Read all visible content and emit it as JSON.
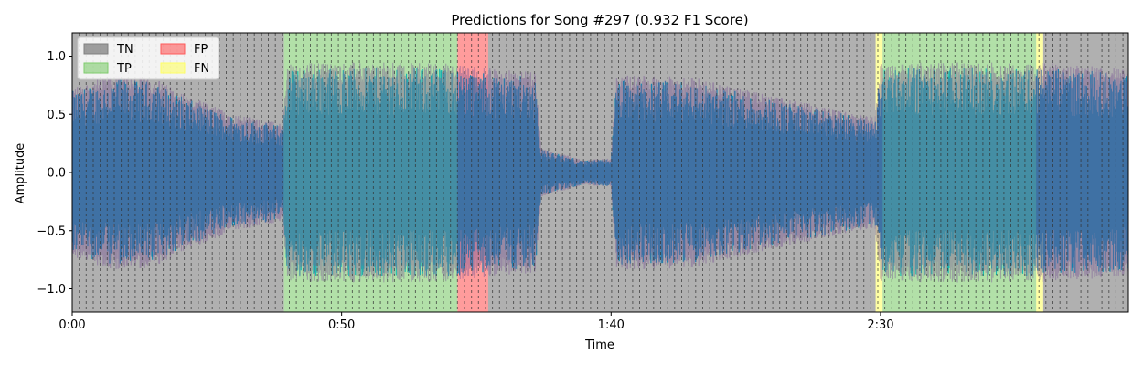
{
  "chart_data": {
    "type": "area",
    "title": "Predictions for Song #297 (0.932 F1 Score)",
    "xlabel": "Time",
    "ylabel": "Amplitude",
    "xlim": [
      0,
      196
    ],
    "ylim": [
      -1.2,
      1.2
    ],
    "x_ticks": [
      {
        "value": 0,
        "label": "0:00"
      },
      {
        "value": 50,
        "label": "0:50"
      },
      {
        "value": 100,
        "label": "1:40"
      },
      {
        "value": 150,
        "label": "2:30"
      }
    ],
    "y_ticks": [
      {
        "value": -1.0,
        "label": "−1.0"
      },
      {
        "value": -0.5,
        "label": "−0.5"
      },
      {
        "value": 0.0,
        "label": "0.0"
      },
      {
        "value": 0.5,
        "label": "0.5"
      },
      {
        "value": 1.0,
        "label": "1.0"
      }
    ],
    "legend": {
      "placement": "top-left",
      "entries": [
        {
          "label": "TN",
          "color": "#808080"
        },
        {
          "label": "TP",
          "color": "#7fcc6e"
        },
        {
          "label": "FP",
          "color": "#ff5a5a"
        },
        {
          "label": "FN",
          "color": "#ffff66"
        }
      ]
    },
    "segments": [
      {
        "start": 0,
        "end": 39.3,
        "class": "TN"
      },
      {
        "start": 39.3,
        "end": 71.5,
        "class": "TP"
      },
      {
        "start": 71.5,
        "end": 77.2,
        "class": "FP"
      },
      {
        "start": 77.2,
        "end": 149.1,
        "class": "TN"
      },
      {
        "start": 149.1,
        "end": 150.4,
        "class": "FN"
      },
      {
        "start": 150.4,
        "end": 178.9,
        "class": "TP"
      },
      {
        "start": 178.9,
        "end": 180.2,
        "class": "FN"
      },
      {
        "start": 180.2,
        "end": 196,
        "class": "TN"
      }
    ],
    "beat_interval": 1.3,
    "waveform_envelope": [
      {
        "x": 0,
        "y": 0.7
      },
      {
        "x": 8,
        "y": 0.8
      },
      {
        "x": 15,
        "y": 0.78
      },
      {
        "x": 22,
        "y": 0.62
      },
      {
        "x": 30,
        "y": 0.48
      },
      {
        "x": 39,
        "y": 0.4
      },
      {
        "x": 40,
        "y": 0.9
      },
      {
        "x": 70,
        "y": 0.9
      },
      {
        "x": 78,
        "y": 0.85
      },
      {
        "x": 86,
        "y": 0.82
      },
      {
        "x": 87,
        "y": 0.2
      },
      {
        "x": 95,
        "y": 0.1
      },
      {
        "x": 100,
        "y": 0.12
      },
      {
        "x": 101,
        "y": 0.8
      },
      {
        "x": 115,
        "y": 0.78
      },
      {
        "x": 135,
        "y": 0.58
      },
      {
        "x": 149,
        "y": 0.45
      },
      {
        "x": 150,
        "y": 0.9
      },
      {
        "x": 180,
        "y": 0.9
      },
      {
        "x": 196,
        "y": 0.85
      }
    ],
    "colors": {
      "waveform_primary": "#0e84b0",
      "waveform_secondary": "#17b9b0",
      "waveform_overlay": "#7d5a96",
      "beat_line": "#333333",
      "frame": "#000000"
    }
  }
}
